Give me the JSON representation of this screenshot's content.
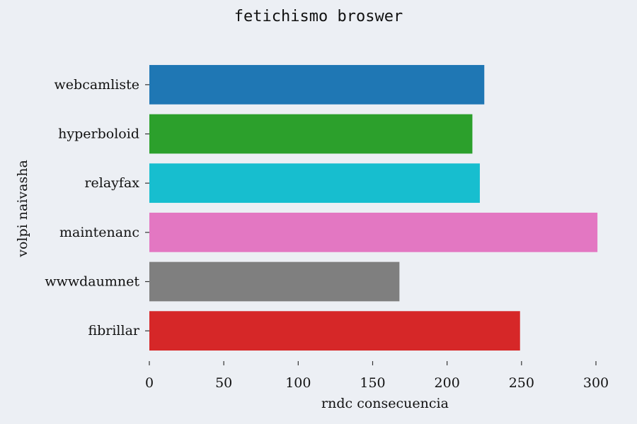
{
  "chart_data": {
    "type": "bar",
    "orientation": "horizontal",
    "title": "fetichismo broswer",
    "xlabel": "rndc consecuencia",
    "ylabel": "volpi naivasha",
    "categories": [
      "webcamliste",
      "hyperboloid",
      "relayfax",
      "maintenanc",
      "wwwdaumnet",
      "fibrillar"
    ],
    "values": [
      225,
      217,
      222,
      301,
      168,
      249
    ],
    "colors": [
      "#1f77b4",
      "#2ca02c",
      "#17becf",
      "#e377c2",
      "#7f7f7f",
      "#d62728"
    ],
    "xlim": [
      0,
      300
    ],
    "xticks": [
      0,
      50,
      100,
      150,
      200,
      250,
      300
    ],
    "grid": false,
    "legend": "none"
  }
}
